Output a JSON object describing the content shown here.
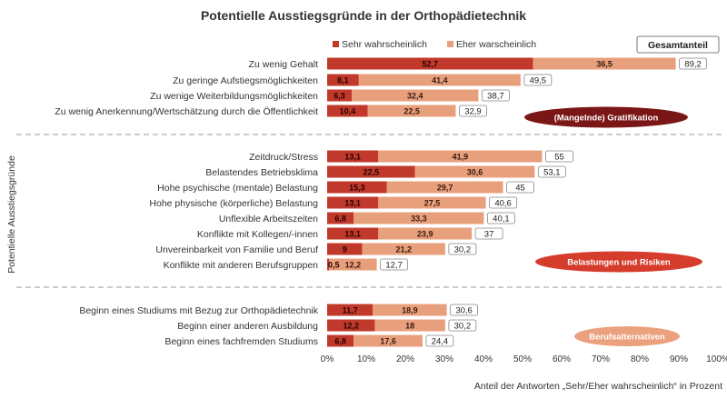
{
  "chart_data": {
    "type": "bar",
    "orientation": "horizontal",
    "stacked": true,
    "title": "Potentielle Ausstiegsgründe  in der Orthopädietechnik",
    "xlabel": "Anteil der Antworten „Sehr/Eher wahrscheinlich“ in Prozent",
    "ylabel": "Potentielle Ausstiegsgründe",
    "xlim": [
      0,
      100
    ],
    "x_ticks": [
      "0%",
      "10%",
      "20%",
      "30%",
      "40%",
      "50%",
      "60%",
      "70%",
      "80%",
      "90%",
      "100%"
    ],
    "grid": false,
    "legend_position": "top",
    "total_box_label": "Gesamtanteil",
    "colors": {
      "series_1": "#c0392b",
      "series_2": "#e8a07c",
      "group_badge_1": "#7b1616",
      "group_badge_2": "#d63c2c",
      "group_badge_3": "#eba07e"
    },
    "series": [
      {
        "name": "Sehr wahrscheinlich",
        "color": "#c0392b"
      },
      {
        "name": "Eher warscheinlich",
        "color": "#e8a07c"
      }
    ],
    "groups": [
      {
        "label": "(Mangelnde) Gratifikation",
        "categories": [
          {
            "label": "Zu wenig Gehalt",
            "sehr": 52.7,
            "eher": 36.5,
            "total": 89.2,
            "sehr_label": "52,7",
            "eher_label": "36,5",
            "total_label": "89,2"
          },
          {
            "label": "Zu geringe Aufstiegsmöglichkeiten",
            "sehr": 8.1,
            "eher": 41.4,
            "total": 49.5,
            "sehr_label": "8,1",
            "eher_label": "41,4",
            "total_label": "49,5"
          },
          {
            "label": "Zu wenige Weiterbildungsmöglichkeiten",
            "sehr": 6.3,
            "eher": 32.4,
            "total": 38.7,
            "sehr_label": "6,3",
            "eher_label": "32,4",
            "total_label": "38,7"
          },
          {
            "label": "Zu wenig Anerkennung/Wertschätzung durch die Öffentlichkeit",
            "sehr": 10.4,
            "eher": 22.5,
            "total": 32.9,
            "sehr_label": "10,4",
            "eher_label": "22,5",
            "total_label": "32,9"
          }
        ]
      },
      {
        "label": "Belastungen und Risiken",
        "categories": [
          {
            "label": "Zeitdruck/Stress",
            "sehr": 13.1,
            "eher": 41.9,
            "total": 55,
            "sehr_label": "13,1",
            "eher_label": "41,9",
            "total_label": "55"
          },
          {
            "label": "Belastendes Betriebsklima",
            "sehr": 22.5,
            "eher": 30.6,
            "total": 53.1,
            "sehr_label": "22,5",
            "eher_label": "30,6",
            "total_label": "53,1"
          },
          {
            "label": "Hohe psychische (mentale) Belastung",
            "sehr": 15.3,
            "eher": 29.7,
            "total": 45,
            "sehr_label": "15,3",
            "eher_label": "29,7",
            "total_label": "45"
          },
          {
            "label": "Hohe physische (körperliche) Belastung",
            "sehr": 13.1,
            "eher": 27.5,
            "total": 40.6,
            "sehr_label": "13,1",
            "eher_label": "27,5",
            "total_label": "40,6"
          },
          {
            "label": "Unflexible Arbeitszeiten",
            "sehr": 6.8,
            "eher": 33.3,
            "total": 40.1,
            "sehr_label": "6,8",
            "eher_label": "33,3",
            "total_label": "40,1"
          },
          {
            "label": "Konflikte mit Kollegen/-innen",
            "sehr": 13.1,
            "eher": 23.9,
            "total": 37,
            "sehr_label": "13,1",
            "eher_label": "23,9",
            "total_label": "37"
          },
          {
            "label": "Unvereinbarkeit von Familie und Beruf",
            "sehr": 9,
            "eher": 21.2,
            "total": 30.2,
            "sehr_label": "9",
            "eher_label": "21,2",
            "total_label": "30,2"
          },
          {
            "label": "Konflikte mit anderen Berufsgruppen",
            "sehr": 0.5,
            "eher": 12.2,
            "total": 12.7,
            "sehr_label": "0,5",
            "eher_label": "12,2",
            "total_label": "12,7"
          }
        ]
      },
      {
        "label": "Berufsalternativen",
        "categories": [
          {
            "label": "Beginn eines Studiums mit Bezug zur Orthopädietechnik",
            "sehr": 11.7,
            "eher": 18.9,
            "total": 30.6,
            "sehr_label": "11,7",
            "eher_label": "18,9",
            "total_label": "30,6"
          },
          {
            "label": "Beginn einer anderen Ausbildung",
            "sehr": 12.2,
            "eher": 18,
            "total": 30.2,
            "sehr_label": "12,2",
            "eher_label": "18",
            "total_label": "30,2"
          },
          {
            "label": "Beginn eines fachfremden Studiums",
            "sehr": 6.8,
            "eher": 17.6,
            "total": 24.4,
            "sehr_label": "6,8",
            "eher_label": "17,6",
            "total_label": "24,4"
          }
        ]
      }
    ]
  }
}
